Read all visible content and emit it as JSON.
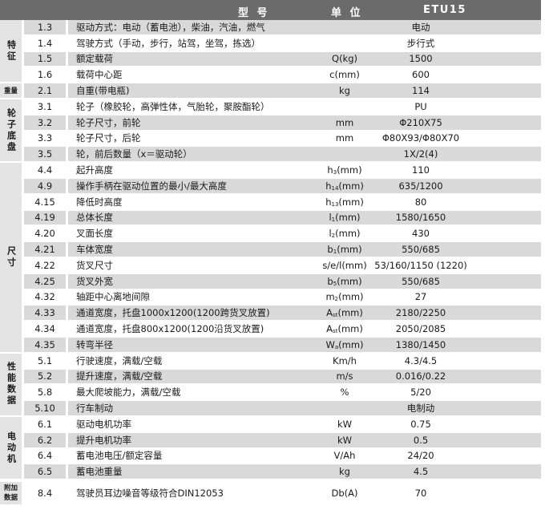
{
  "header": {
    "model": "型 号",
    "unit": "单 位",
    "value": "ETU15"
  },
  "categories": [
    {
      "label": "特征",
      "rows": [
        0,
        3
      ],
      "style": "vert"
    },
    {
      "label": "重量",
      "rows": [
        4,
        4
      ],
      "style": "small"
    },
    {
      "label": "轮子底盘",
      "rows": [
        5,
        8
      ],
      "style": "vert"
    },
    {
      "label": "尺寸",
      "rows": [
        9,
        20
      ],
      "style": "vert"
    },
    {
      "label": "性能数据",
      "rows": [
        21,
        24
      ],
      "style": "vert"
    },
    {
      "label": "电动机",
      "rows": [
        25,
        28
      ],
      "style": "vert"
    },
    {
      "label": "附加数据",
      "rows": [
        29,
        29
      ],
      "style": "small2"
    }
  ],
  "rows": [
    {
      "num": "1.3",
      "desc": "驱动方式：电动（蓄电池），柴油，汽油，燃气",
      "unit": [
        "",
        "",
        ""
      ],
      "value": "电动"
    },
    {
      "num": "1.4",
      "desc": "驾驶方式（手动，步行，站驾，坐驾，拣选）",
      "unit": [
        "",
        "",
        ""
      ],
      "value": "步行式"
    },
    {
      "num": "1.5",
      "desc": "额定载荷",
      "unit": [
        "Q(kg)",
        "",
        ""
      ],
      "value": "1500"
    },
    {
      "num": "1.6",
      "desc": "载荷中心距",
      "unit": [
        "c(mm)",
        "",
        ""
      ],
      "value": "600"
    },
    {
      "num": "2.1",
      "desc": "自重(带电瓶)",
      "unit": [
        "kg",
        "",
        ""
      ],
      "value": "114"
    },
    {
      "num": "3.1",
      "desc": "轮子（橡胶轮，高弹性体，气胎轮，聚胺酯轮）",
      "unit": [
        "",
        "",
        ""
      ],
      "value": "PU"
    },
    {
      "num": "3.2",
      "desc": "轮子尺寸，前轮",
      "unit": [
        "mm",
        "",
        ""
      ],
      "value": "Φ210X75"
    },
    {
      "num": "3.3",
      "desc": "轮子尺寸，后轮",
      "unit": [
        "mm",
        "",
        ""
      ],
      "value": "Φ80X93/Φ80X70"
    },
    {
      "num": "3.5",
      "desc": "轮，前后数量（x＝驱动轮）",
      "unit": [
        "",
        "",
        ""
      ],
      "value": "1X/2(4)"
    },
    {
      "num": "4.4",
      "desc": "起升高度",
      "unit": [
        "h",
        "3",
        "(mm)"
      ],
      "value": "110"
    },
    {
      "num": "4.9",
      "desc": "操作手柄在驱动位置的最小/最大高度",
      "unit": [
        "h",
        "14",
        "(mm)"
      ],
      "value": "635/1200"
    },
    {
      "num": "4.15",
      "desc": "降低时高度",
      "unit": [
        "h",
        "13",
        "(mm)"
      ],
      "value": "80"
    },
    {
      "num": "4.19",
      "desc": "总体长度",
      "unit": [
        "l",
        "1",
        "(mm)"
      ],
      "value": "1580/1650"
    },
    {
      "num": "4.20",
      "desc": "叉面长度",
      "unit": [
        "l",
        "2",
        "(mm)"
      ],
      "value": "430"
    },
    {
      "num": "4.21",
      "desc": "车体宽度",
      "unit": [
        "b",
        "1",
        "(mm)"
      ],
      "value": "550/685"
    },
    {
      "num": "4.22",
      "desc": "货叉尺寸",
      "unit": [
        "s/e/l(mm)",
        "",
        ""
      ],
      "value": "53/160/1150 (1220)"
    },
    {
      "num": "4.25",
      "desc": "货叉外宽",
      "unit": [
        "b",
        "5",
        "(mm)"
      ],
      "value": "550/685"
    },
    {
      "num": "4.32",
      "desc": "轴距中心离地间隙",
      "unit": [
        "m",
        "2",
        "(mm)"
      ],
      "value": "27"
    },
    {
      "num": "4.33",
      "desc": "通道宽度，托盘1000x1200(1200跨货叉放置)",
      "unit": [
        "A",
        "st",
        "(mm)"
      ],
      "value": "2180/2250"
    },
    {
      "num": "4.34",
      "desc": "通道宽度，托盘800x1200(1200沿货叉放置)",
      "unit": [
        "A",
        "st",
        "(mm)"
      ],
      "value": "2050/2085"
    },
    {
      "num": "4.35",
      "desc": "转弯半径",
      "unit": [
        "W",
        "a",
        "(mm)"
      ],
      "value": "1380/1450"
    },
    {
      "num": "5.1",
      "desc": "行驶速度，满载/空载",
      "unit": [
        "Km/h",
        "",
        ""
      ],
      "value": "4.3/4.5"
    },
    {
      "num": "5.2",
      "desc": "提升速度，满载/空载",
      "unit": [
        "m/s",
        "",
        ""
      ],
      "value": "0.016/0.22"
    },
    {
      "num": "5.8",
      "desc": "最大爬坡能力，满载/空载",
      "unit": [
        "%",
        "",
        ""
      ],
      "value": "5/20"
    },
    {
      "num": "5.10",
      "desc": "行车制动",
      "unit": [
        "",
        "",
        ""
      ],
      "value": "电制动"
    },
    {
      "num": "6.1",
      "desc": "驱动电机功率",
      "unit": [
        "kW",
        "",
        ""
      ],
      "value": "0.75"
    },
    {
      "num": "6.2",
      "desc": "提升电机功率",
      "unit": [
        "kW",
        "",
        ""
      ],
      "value": "0.5"
    },
    {
      "num": "6.4",
      "desc": "蓄电池电压/额定容量",
      "unit": [
        "V/Ah",
        "",
        ""
      ],
      "value": "24/20"
    },
    {
      "num": "6.5",
      "desc": "蓄电池重量",
      "unit": [
        "kg",
        "",
        ""
      ],
      "value": "4.5"
    },
    {
      "num": "8.4",
      "desc": "驾驶员耳边噪音等级符合DIN12053",
      "unit": [
        "Db(A)",
        "",
        ""
      ],
      "value": "70"
    }
  ],
  "colors": {
    "header": "#6b6b6b",
    "stripe": "#d9d9d9",
    "category": "#e3e3e3"
  }
}
